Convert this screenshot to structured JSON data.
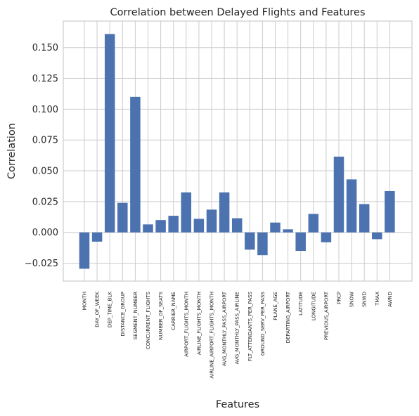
{
  "chart_data": {
    "type": "bar",
    "title": "Correlation between Delayed Flights and Features",
    "xlabel": "Features",
    "ylabel": "Correlation",
    "ylim": [
      -0.0395,
      0.1715
    ],
    "yticks": [
      -0.025,
      0.0,
      0.025,
      0.05,
      0.075,
      0.1,
      0.125,
      0.15
    ],
    "ytick_labels": [
      "−0.025",
      "0.000",
      "0.025",
      "0.050",
      "0.075",
      "0.100",
      "0.125",
      "0.150"
    ],
    "grid": true,
    "bar_color": "#4c72b0",
    "categories": [
      "MONTH",
      "DAY_OF_WEEK",
      "DEP_TIME_BLK",
      "DISTANCE_GROUP",
      "SEGMENT_NUMBER",
      "CONCURRENT_FLIGHTS",
      "NUMBER_OF_SEATS",
      "CARRIER_NAME",
      "AIRPORT_FLIGHTS_MONTH",
      "AIRLINE_FLIGHTS_MONTH",
      "AIRLINE_AIRPORT_FLIGHTS_MONTH",
      "AVG_MONTHLY_PASS_AIRPORT",
      "AVG_MONTHLY_PASS_AIRLINE",
      "FLT_ATTENDANTS_PER_PASS",
      "GROUND_SERV_PER_PASS",
      "PLANE_AGE",
      "DEPARTING_AIRPORT",
      "LATITUDE",
      "LONGITUDE",
      "PREVIOUS_AIRPORT",
      "PRCP",
      "SNOW",
      "SNWD",
      "TMAX",
      "AWND"
    ],
    "values": [
      -0.0295,
      -0.0075,
      0.161,
      0.024,
      0.11,
      0.0065,
      0.01,
      0.0135,
      0.0325,
      0.011,
      0.0185,
      0.0325,
      0.0115,
      -0.014,
      -0.0185,
      0.008,
      0.0025,
      -0.015,
      0.015,
      -0.008,
      0.0615,
      0.043,
      0.023,
      -0.0055,
      0.0335
    ]
  }
}
